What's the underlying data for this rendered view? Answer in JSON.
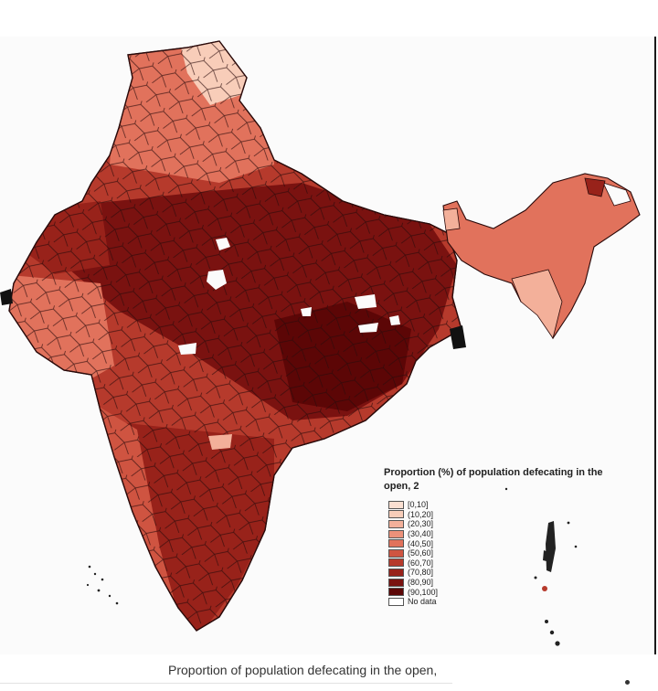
{
  "legend": {
    "title": "Proportion  (%) of population  defecating in the open, 2",
    "items": [
      {
        "label": "[0,10]",
        "color": "#fbe0d2"
      },
      {
        "label": "(10,20]",
        "color": "#f8cdb9"
      },
      {
        "label": "(20,30]",
        "color": "#f3b09a"
      },
      {
        "label": "(30,40]",
        "color": "#ec917a"
      },
      {
        "label": "(40,50]",
        "color": "#e1725c"
      },
      {
        "label": "(50,60]",
        "color": "#cf5441"
      },
      {
        "label": "(60,70]",
        "color": "#b63a2c"
      },
      {
        "label": "(70,80]",
        "color": "#98221a"
      },
      {
        "label": "(80,90]",
        "color": "#7a1210"
      },
      {
        "label": "(90,100]",
        "color": "#5c0606"
      },
      {
        "label": "No data",
        "color": "#ffffff"
      }
    ]
  },
  "caption": "Proportion of population defecating in the open,",
  "colors": {
    "border": "#2a0a0a",
    "mainland_mid": "#b63a2c",
    "core_dark": "#7a1210",
    "islands": "#222222"
  }
}
